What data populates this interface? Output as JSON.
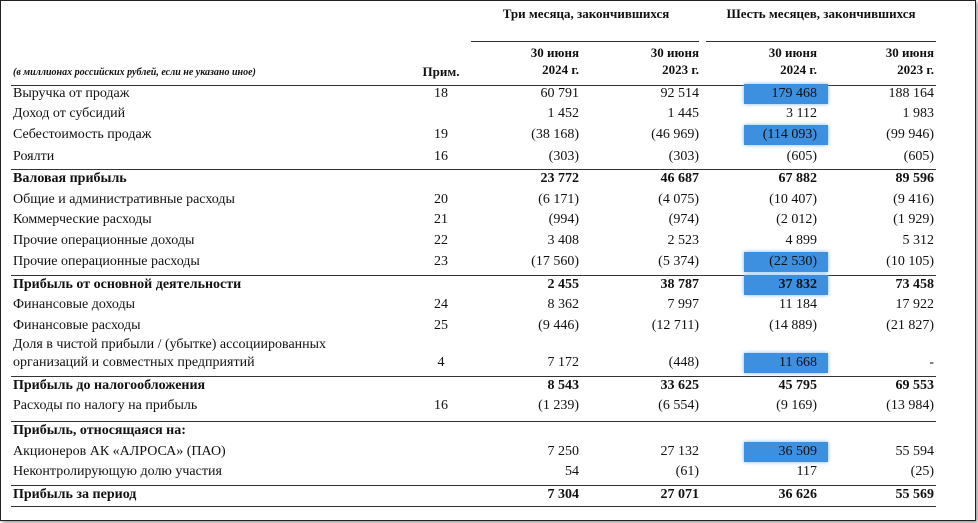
{
  "header": {
    "group_3m": "Три месяца, закончившихся",
    "group_6m": "Шесть месяцев, закончившихся",
    "units_note": "(в миллионах российских рублей, если не указано иное)",
    "note_col": "Прим.",
    "columns": [
      [
        "30 июня",
        "2024 г."
      ],
      [
        "30 июня",
        "2023 г."
      ],
      [
        "30 июня",
        "2024 г."
      ],
      [
        "30 июня",
        "2023 г."
      ]
    ]
  },
  "table": {
    "highlighted_column": 2,
    "rows": [
      {
        "label": [
          "Выручка от продаж"
        ],
        "note": "18",
        "values": [
          "60 791",
          "92 514",
          "179 468",
          "188 164"
        ],
        "highlighted": true
      },
      {
        "label": [
          "Доход от субсидий"
        ],
        "values": [
          "1 452",
          "1 445",
          "3 112",
          "1 983"
        ]
      },
      {
        "label": [
          "Себестоимость продаж"
        ],
        "note": "19",
        "values": [
          "(38 168)",
          "(46 969)",
          "(114 093)",
          "(99 946)"
        ],
        "highlighted": true
      },
      {
        "label": [
          "Роялти"
        ],
        "note": "16",
        "values": [
          "(303)",
          "(303)",
          "(605)",
          "(605)"
        ]
      },
      {
        "label": [
          "Валовая прибыль"
        ],
        "values": [
          "23 772",
          "46 687",
          "67 882",
          "89 596"
        ],
        "bold": true
      },
      {
        "label": [
          "Общие и административные расходы"
        ],
        "note": "20",
        "values": [
          "(6 171)",
          "(4 075)",
          "(10 407)",
          "(9 416)"
        ]
      },
      {
        "label": [
          "Коммерческие расходы"
        ],
        "note": "21",
        "values": [
          "(994)",
          "(974)",
          "(2 012)",
          "(1 929)"
        ]
      },
      {
        "label": [
          "Прочие операционные доходы"
        ],
        "note": "22",
        "values": [
          "3 408",
          "2 523",
          "4 899",
          "5 312"
        ]
      },
      {
        "label": [
          "Прочие операционные расходы"
        ],
        "note": "23",
        "values": [
          "(17 560)",
          "(5 374)",
          "(22 530)",
          "(10 105)"
        ],
        "highlighted": true
      },
      {
        "label": [
          "Прибыль от основной деятельности"
        ],
        "values": [
          "2 455",
          "38 787",
          "37 832",
          "73 458"
        ],
        "bold": true,
        "highlighted": true
      },
      {
        "label": [
          "Финансовые доходы"
        ],
        "note": "24",
        "values": [
          "8 362",
          "7 997",
          "11 184",
          "17 922"
        ]
      },
      {
        "label": [
          "Финансовые расходы"
        ],
        "note": "25",
        "values": [
          "(9 446)",
          "(12 711)",
          "(14 889)",
          "(21 827)"
        ]
      },
      {
        "label": [
          "Доля в чистой прибыли / (убытке) ассоциированных",
          "организаций и совместных предприятий"
        ],
        "note": "4",
        "values": [
          "7 172",
          "(448)",
          "11 668",
          "-"
        ],
        "highlighted": true
      },
      {
        "label": [
          "Прибыль до налогообложения"
        ],
        "values": [
          "8 543",
          "33 625",
          "45 795",
          "69 553"
        ],
        "bold": true
      },
      {
        "label": [
          "Расходы по налогу на прибыль"
        ],
        "note": "16",
        "values": [
          "(1 239)",
          "(6 554)",
          "(9 169)",
          "(13 984)"
        ]
      },
      {
        "label": [
          "Прибыль, относящаяся на:"
        ],
        "values": [],
        "bold": true
      },
      {
        "label": [
          "Акционеров АК «АЛРОСА» (ПАО)"
        ],
        "values": [
          "7 250",
          "27 132",
          "36 509",
          "55 594"
        ],
        "highlighted": true
      },
      {
        "label": [
          "Неконтролирующую долю участия"
        ],
        "values": [
          "54",
          "(61)",
          "117",
          "(25)"
        ]
      },
      {
        "label": [
          "Прибыль за период"
        ],
        "values": [
          "7 304",
          "27 071",
          "36 626",
          "55 569"
        ],
        "bold": true
      }
    ]
  }
}
